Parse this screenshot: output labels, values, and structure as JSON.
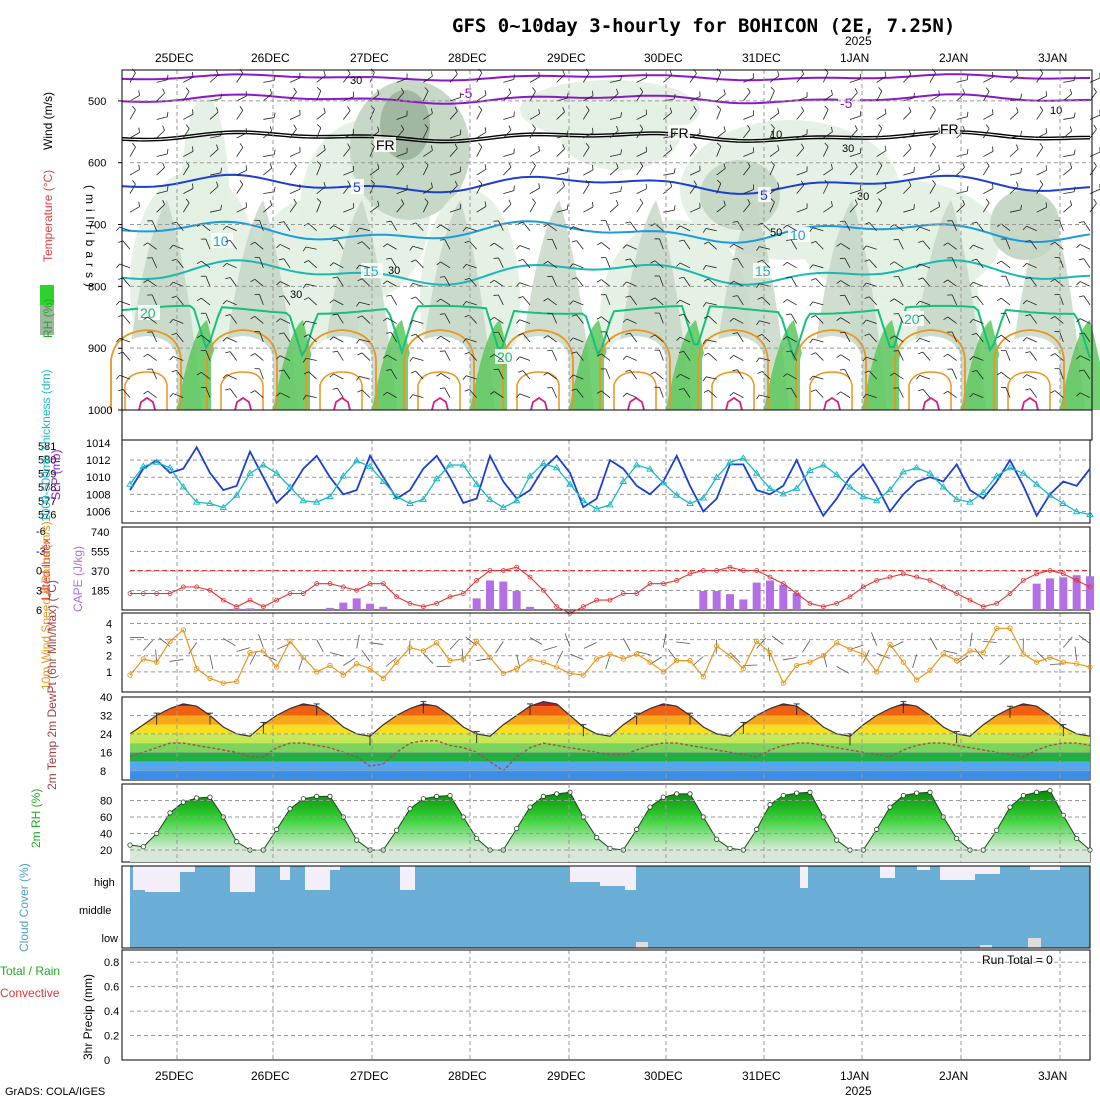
{
  "title": "GFS 0~10day 3-hourly for BOHICON (2E, 7.25N)",
  "year_label": "2025",
  "credit": "GrADS: COLA/IGES",
  "days": [
    "25DEC",
    "26DEC",
    "27DEC",
    "28DEC",
    "29DEC",
    "30DEC",
    "31DEC",
    "1JAN",
    "2JAN",
    "3JAN"
  ],
  "colors": {
    "purple": "#8a18c8",
    "blue": "#1b3fd0",
    "lightblue": "#1a9be0",
    "teal": "#1ab8b0",
    "green": "#17c07a",
    "orange": "#e8961e",
    "magenta": "#d0208a",
    "rh_light": "#e3f0e3",
    "rh_mid": "#c4d6c4",
    "rh_dark": "#9fb59f",
    "rh_green": "#5cc85c",
    "cape_bar": "#b46ee6",
    "lifted": "#e03535",
    "slp": "#1b3fd0",
    "thickness": "#1ab8c8",
    "wind10": "#e8961e",
    "cloud": "#6aaed6",
    "cloud_gap": "#f4eef8"
  },
  "chart_data": [
    {
      "type": "contour",
      "name": "upper-air",
      "ylabel_parts": [
        "RH (%)",
        "Temperature (°C)",
        "Wind (m/s)"
      ],
      "y_axis_title": "(millibars)",
      "y_ticks": [
        "500",
        "600",
        "700",
        "800",
        "900",
        "1000"
      ],
      "ylim": [
        450,
        1000
      ],
      "contour_labels": {
        "temperature": [
          "-5",
          "-5",
          "FR",
          "FR",
          "FR",
          "5",
          "5",
          "10",
          "10",
          "15",
          "15",
          "20",
          "20",
          "20"
        ],
        "rh": [
          "30",
          "30",
          "30",
          "30",
          "50",
          "30",
          "10",
          "10"
        ]
      }
    },
    {
      "type": "line",
      "name": "pressure",
      "ylabel_left": "1000-500mb Thickness (dm)",
      "ylabel_right": "SLP (mb)",
      "thickness_ticks": [
        "581",
        "580",
        "579",
        "578",
        "577",
        "576"
      ],
      "slp_ticks": [
        "1014",
        "1012",
        "1010",
        "1008",
        "1006"
      ],
      "series": [
        {
          "name": "SLP",
          "values": [
            1008.5,
            1011,
            1012,
            1010.5,
            1011,
            1013.5,
            1010.5,
            1008.5,
            1009,
            1013,
            1010,
            1007,
            1008.5,
            1011,
            1012.5,
            1010,
            1008,
            1008.5,
            1012.5,
            1010,
            1007.5,
            1008.5,
            1011,
            1012.5,
            1010,
            1007,
            1007.5,
            1012.5,
            1009.5,
            1007.5,
            1008.5,
            1011,
            1012.5,
            1010.5,
            1006.5,
            1007.5,
            1012,
            1011,
            1009,
            1008,
            1009.5,
            1012.5,
            1009,
            1006,
            1007.5,
            1011.5,
            1011.5,
            1008.5,
            1008,
            1009,
            1012,
            1008.5,
            1005.5,
            1007.5,
            1010,
            1011.5,
            1009,
            1006,
            1008,
            1009.5,
            1010,
            1009.5,
            1011.5,
            1008.5,
            1007.5,
            1009.5,
            1012,
            1009,
            1005.5,
            1008,
            1009.5,
            1009,
            1011
          ]
        },
        {
          "name": "Thickness",
          "values": [
            578.2,
            579.5,
            579.8,
            579.4,
            578.0,
            576.9,
            576.8,
            576.5,
            577.4,
            579.0,
            579.6,
            579.0,
            578.0,
            577.0,
            576.9,
            577.3,
            578.8,
            579.9,
            579.5,
            578.4,
            577.3,
            576.8,
            577.1,
            578.6,
            579.6,
            579.6,
            578.2,
            577.1,
            576.5,
            577.0,
            578.8,
            579.7,
            579.4,
            578.2,
            577.0,
            576.4,
            576.7,
            578.4,
            579.6,
            579.3,
            578.3,
            577.4,
            576.8,
            577.2,
            578.7,
            579.8,
            580.1,
            579.0,
            577.9,
            577.5,
            577.9,
            579.2,
            579.6,
            578.9,
            578.0,
            577.3,
            577.0,
            577.8,
            579.1,
            579.4,
            579.0,
            578.0,
            577.1,
            576.9,
            577.6,
            578.8,
            579.4,
            579.0,
            578.2,
            577.4,
            576.8,
            576.2,
            576.0
          ]
        }
      ]
    },
    {
      "type": "bar",
      "name": "cape",
      "ylabel_left": "Lifted Index",
      "ylabel_right": "CAPE (J/kg)",
      "lifted_ticks": [
        "-6",
        "-3",
        "0",
        "3",
        "6"
      ],
      "cape_ticks": [
        "740",
        "555",
        "370",
        "185"
      ],
      "series": [
        {
          "name": "CAPE",
          "values": [
            0,
            0,
            0,
            0,
            0,
            0,
            0,
            10,
            15,
            15,
            0,
            0,
            0,
            0,
            0,
            20,
            70,
            110,
            60,
            30,
            10,
            0,
            0,
            0,
            0,
            0,
            110,
            280,
            270,
            180,
            30,
            0,
            0,
            0,
            0,
            0,
            0,
            0,
            0,
            0,
            0,
            0,
            0,
            180,
            180,
            150,
            100,
            260,
            280,
            240,
            160,
            0,
            0,
            0,
            0,
            0,
            0,
            0,
            0,
            0,
            0,
            0,
            0,
            0,
            0,
            0,
            0,
            0,
            250,
            300,
            310,
            330,
            320
          ]
        },
        {
          "name": "Lifted Index",
          "values": [
            3.5,
            3.5,
            3.5,
            3.5,
            2.5,
            2.5,
            3,
            4.5,
            5.5,
            4.5,
            5.5,
            4.5,
            3.5,
            3.5,
            2,
            2,
            2.5,
            3,
            2,
            2,
            4,
            5,
            5.5,
            5,
            4,
            3.5,
            1.5,
            0,
            0,
            -0.5,
            1,
            3,
            5.5,
            6.5,
            5.5,
            4.5,
            4.5,
            3.5,
            3.5,
            2,
            2,
            1.5,
            0.5,
            0,
            0,
            -0.5,
            0,
            0,
            1,
            2,
            3.5,
            5,
            5.5,
            5,
            4,
            2.5,
            1.5,
            1,
            0.5,
            1,
            1.5,
            2.5,
            3.5,
            4.5,
            5.5,
            5,
            3.5,
            1.5,
            0.5,
            0,
            0.5,
            1.5,
            2.5
          ]
        }
      ]
    },
    {
      "type": "line",
      "name": "wind10",
      "ylabel": "10m Wind Speed & Barbs (m/s)",
      "y_ticks": [
        "4",
        "3",
        "2",
        "1"
      ],
      "series": [
        {
          "name": "10m wind speed",
          "values": [
            0.8,
            1.8,
            1.6,
            2.9,
            3.6,
            1.2,
            0.6,
            0.3,
            0.4,
            2.2,
            2.3,
            1.3,
            2.9,
            1.9,
            1.0,
            1.4,
            0.8,
            1.5,
            1.2,
            0.6,
            1.6,
            2.5,
            2.3,
            2.8,
            1.7,
            1.8,
            2.9,
            1.9,
            0.9,
            1.2,
            1.8,
            1.6,
            1.3,
            0.9,
            0.8,
            1.8,
            2.1,
            1.8,
            2.1,
            1.6,
            1.0,
            1.7,
            1.7,
            0.7,
            2.6,
            2.0,
            1.2,
            2.9,
            2.2,
            0.3,
            1.4,
            1.6,
            2.0,
            2.8,
            2.4,
            2.1,
            1.0,
            2.7,
            1.6,
            0.5,
            1.1,
            2.1,
            1.7,
            2.3,
            2.2,
            3.7,
            3.7,
            2.1,
            1.6,
            1.9,
            1.6,
            1.5,
            1.3
          ]
        }
      ]
    },
    {
      "type": "area",
      "name": "temperature",
      "ylabel": "2m Temp 2m DewPt (6hr Min/Max) (°C)",
      "y_ticks": [
        "40",
        "32",
        "24",
        "16",
        "8"
      ],
      "series": [
        {
          "name": "2m Temp",
          "values": [
            24,
            28,
            32,
            35,
            37,
            36,
            32,
            27,
            24,
            23,
            28,
            32,
            35,
            37,
            36,
            32,
            27,
            24,
            23,
            28,
            32,
            35,
            37,
            36,
            32,
            27,
            24,
            23,
            28,
            32,
            36,
            38,
            37,
            32,
            27,
            24,
            23,
            28,
            32,
            35,
            37,
            36,
            32,
            27,
            24,
            23,
            28,
            32,
            35,
            37,
            36,
            32,
            27,
            24,
            23,
            28,
            32,
            35,
            37,
            36,
            32,
            27,
            24,
            23,
            28,
            32,
            35,
            37,
            36,
            32,
            27,
            24,
            23
          ]
        },
        {
          "name": "2m DewPt",
          "values": [
            14,
            16,
            18,
            20,
            20,
            19,
            18,
            17,
            16,
            14,
            14,
            18,
            20,
            20,
            19,
            18,
            16,
            14,
            10,
            11,
            16,
            20,
            21,
            21,
            19,
            18,
            16,
            12,
            8,
            14,
            18,
            20,
            19,
            18,
            17,
            16,
            15,
            15,
            17,
            19,
            20,
            20,
            19,
            18,
            17,
            16,
            15,
            14,
            17,
            19,
            20,
            20,
            19,
            18,
            17,
            16,
            15,
            14,
            17,
            19,
            20,
            20,
            19,
            18,
            17,
            16,
            15,
            14,
            17,
            19,
            20,
            20,
            19
          ]
        }
      ]
    },
    {
      "type": "area",
      "name": "rh",
      "ylabel": "2m RH (%)",
      "y_ticks": [
        "80",
        "60",
        "40",
        "20"
      ],
      "series": [
        {
          "name": "2m RH",
          "values": [
            26,
            24,
            40,
            65,
            78,
            83,
            84,
            60,
            30,
            20,
            20,
            45,
            70,
            82,
            85,
            85,
            60,
            32,
            20,
            20,
            44,
            70,
            82,
            85,
            86,
            60,
            34,
            20,
            20,
            46,
            72,
            85,
            88,
            90,
            60,
            35,
            22,
            20,
            45,
            72,
            84,
            88,
            88,
            60,
            33,
            22,
            20,
            45,
            75,
            86,
            89,
            90,
            60,
            32,
            20,
            20,
            45,
            72,
            86,
            89,
            90,
            60,
            34,
            20,
            20,
            44,
            72,
            86,
            90,
            92,
            62,
            34,
            20
          ]
        }
      ]
    },
    {
      "type": "bar",
      "name": "cloud",
      "ylabel": "Cloud Cover (%)",
      "y_ticks": [
        "high",
        "middle",
        "low"
      ]
    },
    {
      "type": "line",
      "name": "precip",
      "ylabel_parts": [
        "Total / Rain",
        "Convective",
        "3hr Precip (mm)"
      ],
      "y_ticks": [
        "0.8",
        "0.6",
        "0.4",
        "0.2",
        "0"
      ],
      "run_total": "Run Total = 0",
      "series": [
        {
          "name": "3hr Precip",
          "values": []
        }
      ]
    }
  ]
}
